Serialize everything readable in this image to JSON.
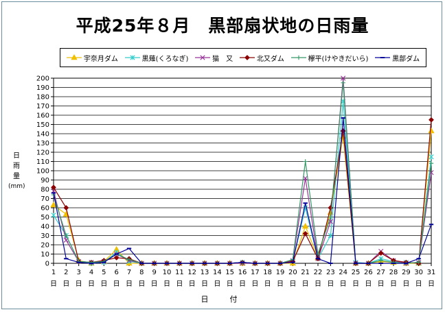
{
  "chart_data": {
    "type": "line",
    "title": "平成25年８月　黒部扇状地の日雨量",
    "xlabel": "日　付",
    "ylabel": "日雨量(mm)",
    "ylabel_chars": [
      "日",
      "雨",
      "量",
      "(mm)"
    ],
    "x_ticks": [
      "1",
      "2",
      "3",
      "4",
      "5",
      "6",
      "7",
      "8",
      "9",
      "10",
      "11",
      "12",
      "13",
      "14",
      "15",
      "16",
      "17",
      "18",
      "19",
      "20",
      "21",
      "22",
      "23",
      "24",
      "25",
      "26",
      "27",
      "28",
      "29",
      "30",
      "31"
    ],
    "x_suffix": "日",
    "ylim": [
      0,
      200
    ],
    "y_step": 10,
    "grid": true,
    "legend_position": "top",
    "series": [
      {
        "name": "宇奈月ダム",
        "color": "#f0c000",
        "marker": "triangle",
        "values": [
          63,
          53,
          3,
          0,
          2,
          15,
          0,
          0,
          0,
          0,
          0,
          0,
          0,
          0,
          0,
          0,
          0,
          0,
          0,
          0,
          40,
          6,
          55,
          137,
          0,
          0,
          2,
          1,
          0,
          0,
          143
        ]
      },
      {
        "name": "黒薙(くろなぎ)",
        "color": "#33cccc",
        "marker": "star",
        "values": [
          52,
          30,
          2,
          0,
          1,
          12,
          2,
          0,
          0,
          0,
          0,
          0,
          0,
          0,
          0,
          1,
          0,
          0,
          0,
          2,
          60,
          5,
          30,
          175,
          1,
          0,
          5,
          2,
          1,
          0,
          115
        ]
      },
      {
        "name": "猫　又",
        "color": "#993399",
        "marker": "x",
        "values": [
          78,
          25,
          2,
          1,
          2,
          10,
          3,
          0,
          0,
          0,
          0,
          0,
          0,
          0,
          0,
          0,
          0,
          0,
          0,
          3,
          92,
          5,
          45,
          200,
          0,
          0,
          13,
          3,
          0,
          1,
          98
        ]
      },
      {
        "name": "北又ダム",
        "color": "#8b0000",
        "marker": "diamond",
        "values": [
          82,
          60,
          2,
          1,
          3,
          6,
          5,
          0,
          0,
          0,
          0,
          0,
          0,
          0,
          0,
          1,
          0,
          0,
          0,
          2,
          32,
          5,
          60,
          143,
          0,
          0,
          11,
          3,
          1,
          0,
          155
        ]
      },
      {
        "name": "欅平(けやきだいら)",
        "color": "#339966",
        "marker": "plus",
        "values": [
          74,
          30,
          2,
          1,
          2,
          10,
          4,
          0,
          0,
          0,
          0,
          0,
          0,
          0,
          0,
          1,
          0,
          0,
          0,
          4,
          110,
          10,
          50,
          195,
          0,
          0,
          3,
          1,
          0,
          1,
          108
        ]
      },
      {
        "name": "黒部ダム",
        "color": "#000099",
        "marker": "dash",
        "values": [
          76,
          5,
          1,
          0,
          1,
          10,
          16,
          0,
          0,
          0,
          0,
          0,
          0,
          0,
          0,
          1,
          0,
          0,
          0,
          1,
          65,
          5,
          0,
          157,
          0,
          0,
          0,
          0,
          0,
          5,
          42
        ]
      }
    ]
  }
}
